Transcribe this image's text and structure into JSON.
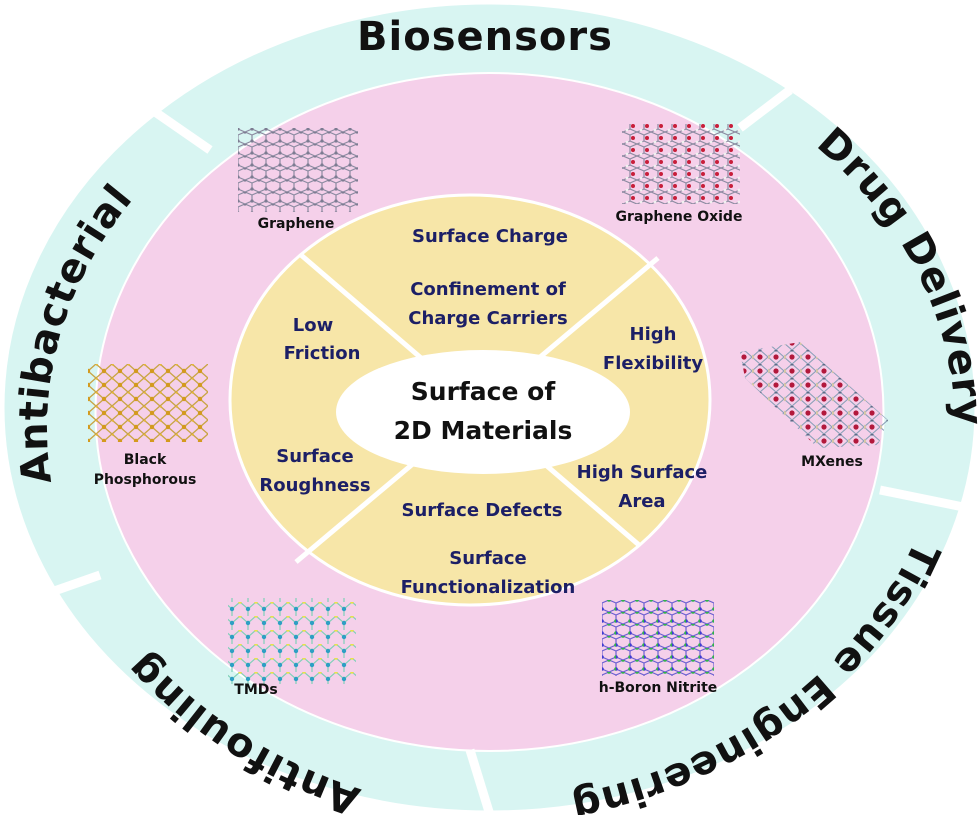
{
  "center": {
    "line1": "Surface of",
    "line2": "2D Materials"
  },
  "outer_ring": {
    "biosensors": "Biosensors",
    "drug_delivery": "Drug Delivery",
    "tissue_engineering": "Tissue Engineering",
    "antifouling": "Antifouling",
    "antibacterial": "Antibacterial"
  },
  "properties": {
    "surface_charge": "Surface Charge",
    "confinement_1": "Confinement of",
    "confinement_2": "Charge Carriers",
    "high_flexibility_1": "High",
    "high_flexibility_2": "Flexibility",
    "high_surface_area_1": "High Surface",
    "high_surface_area_2": "Area",
    "surface_defects": "Surface Defects",
    "surface_functionalization_1": "Surface",
    "surface_functionalization_2": "Functionalization",
    "surface_roughness_1": "Surface",
    "surface_roughness_2": "Roughness",
    "low_friction_1": "Low",
    "low_friction_2": "Friction"
  },
  "materials": {
    "graphene": "Graphene",
    "graphene_oxide": "Graphene Oxide",
    "mxenes": "MXenes",
    "h_boron_nitrite": "h-Boron Nitrite",
    "tmds": "TMDs",
    "black_phosphorous_1": "Black",
    "black_phosphorous_2": "Phosphorous"
  },
  "colors": {
    "outer_ring": "#d8f5f2",
    "middle_ring": "#f5d0ea",
    "inner_disk": "#f7e6a8",
    "center": "#ffffff",
    "property_text": "#1c1f66"
  }
}
